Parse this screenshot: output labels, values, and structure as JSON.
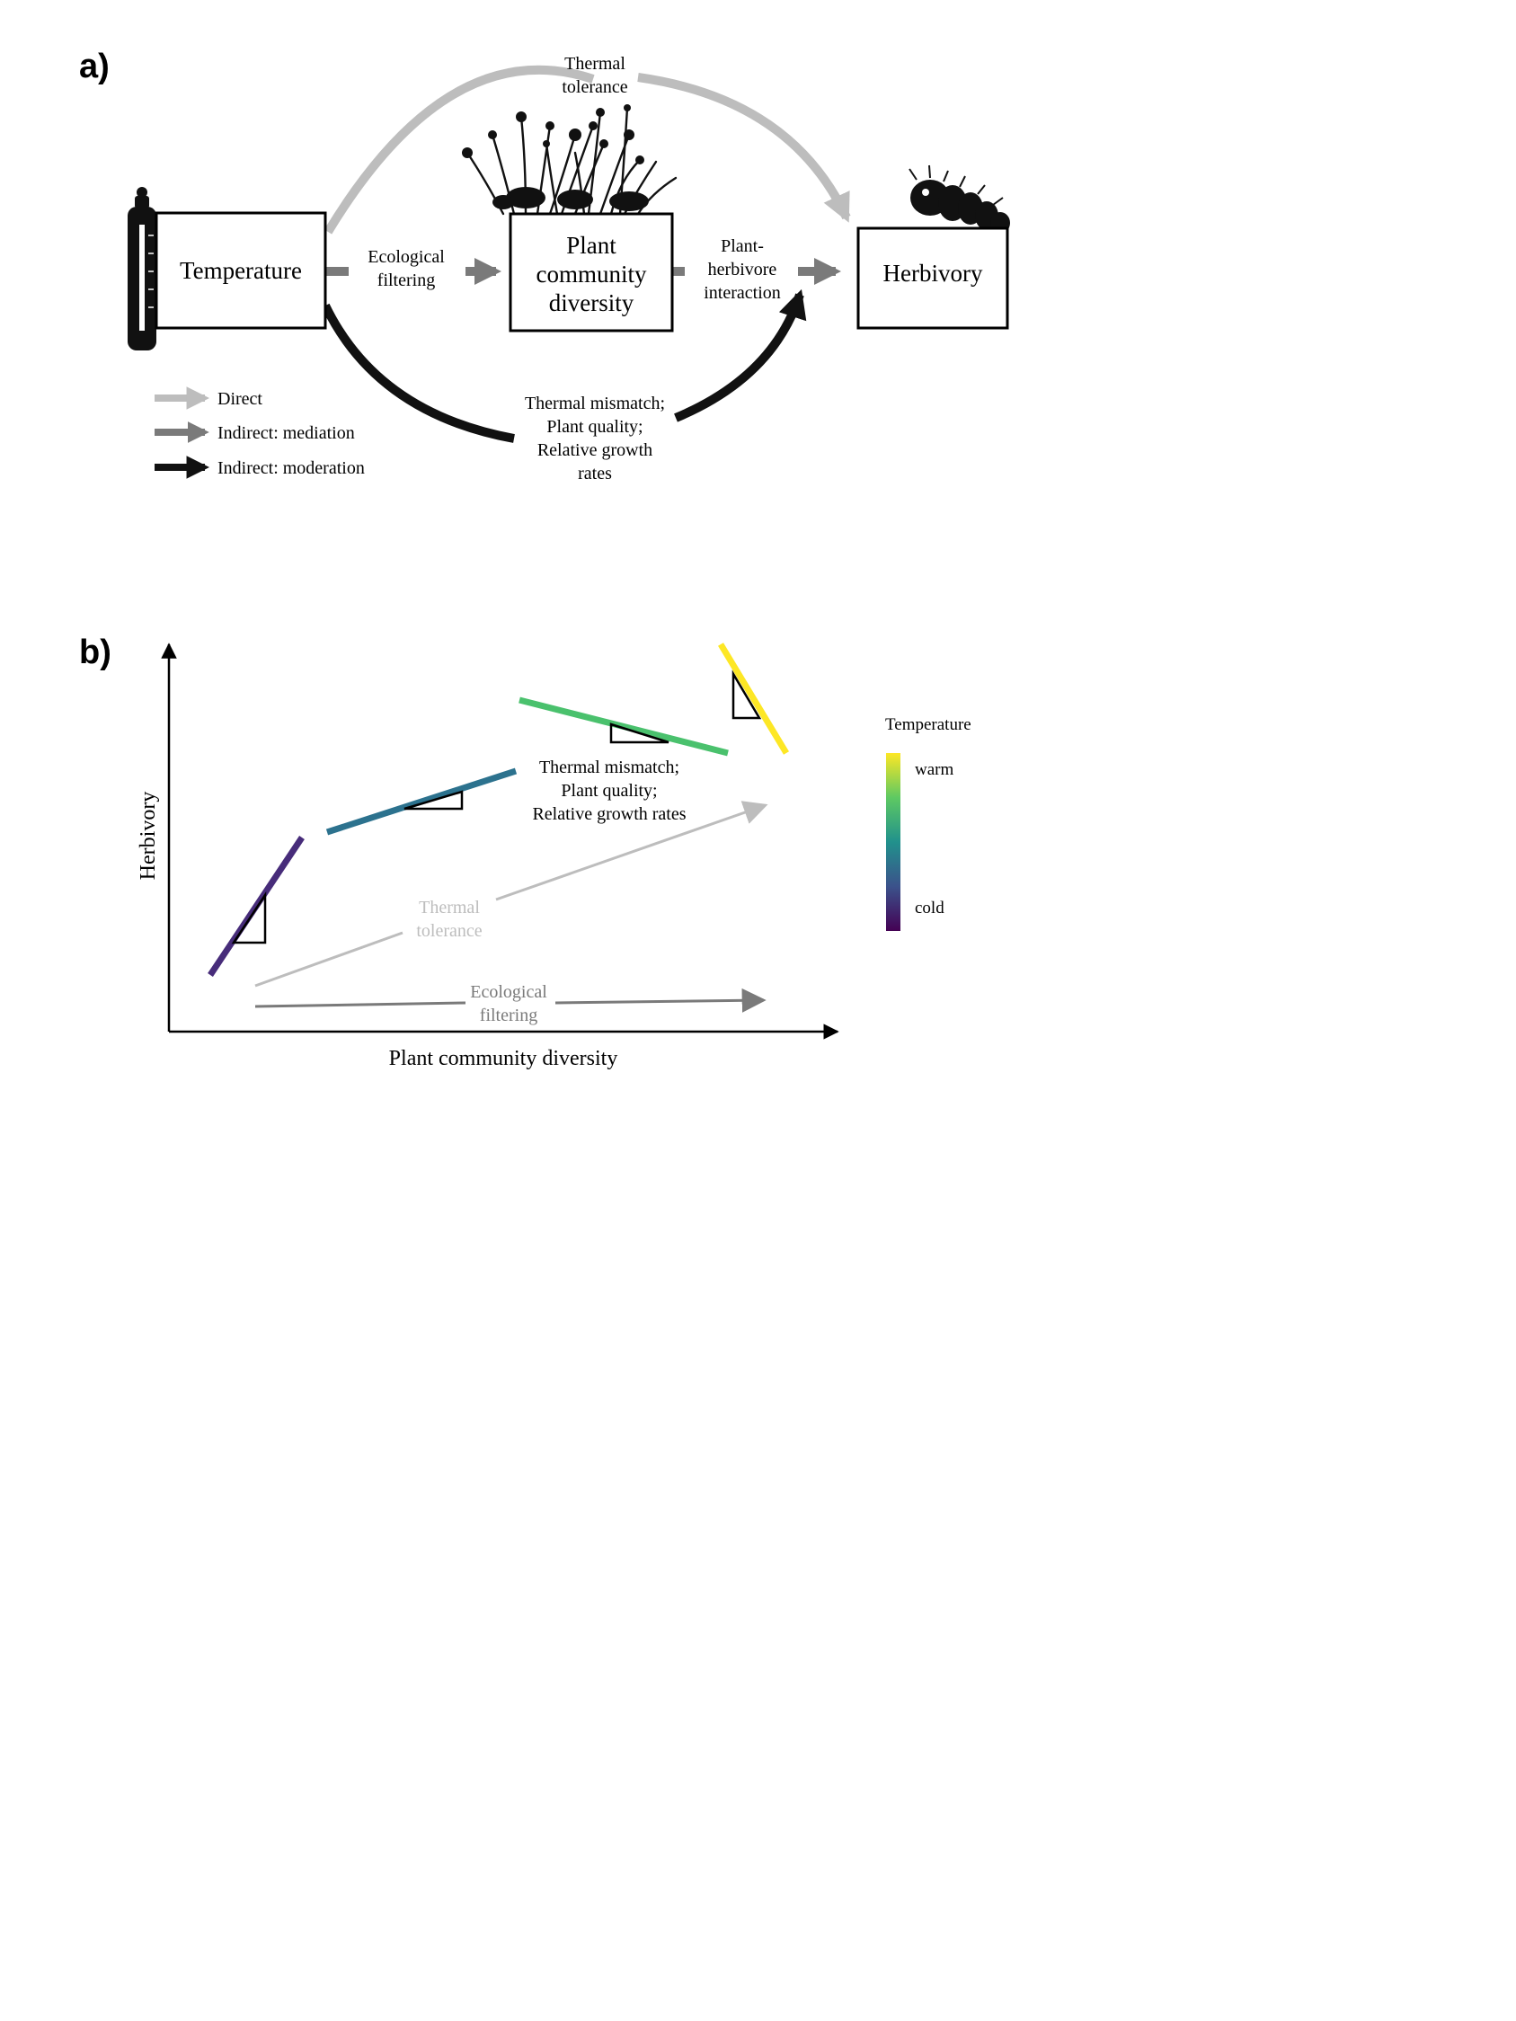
{
  "panel_a": {
    "label": "a)",
    "nodes": {
      "temperature": "Temperature",
      "plant_community_diversity": [
        "Plant",
        "community",
        "diversity"
      ],
      "herbivory": "Herbivory"
    },
    "paths": {
      "thermal_tolerance": [
        "Thermal",
        "tolerance"
      ],
      "ecological_filtering": [
        "Ecological",
        "filtering"
      ],
      "plant_herbivore_interaction": [
        "Plant-",
        "herbivore",
        "interaction"
      ],
      "moderation": [
        "Thermal mismatch;",
        "Plant quality;",
        "Relative growth",
        "rates"
      ]
    },
    "legend": [
      {
        "label": "Direct",
        "color": "#bdbdbd"
      },
      {
        "label": "Indirect: mediation",
        "color": "#7a7a7a"
      },
      {
        "label": "Indirect: moderation",
        "color": "#111111"
      }
    ],
    "icons": [
      "thermometer-icon",
      "plant-community-icon",
      "caterpillar-icon"
    ]
  },
  "panel_b": {
    "label": "b)",
    "x_axis_label": "Plant community diversity",
    "y_axis_label": "Herbivory",
    "annotations": {
      "moderation": [
        "Thermal mismatch;",
        "Plant quality;",
        "Relative growth rates"
      ],
      "thermal_tolerance": [
        "Thermal",
        "tolerance"
      ],
      "ecological_filtering": [
        "Ecological",
        "filtering"
      ]
    },
    "colorbar": {
      "title": "Temperature",
      "high_label": "warm",
      "low_label": "cold",
      "colors": [
        "#fde725",
        "#5ec962",
        "#21918c",
        "#3b528b",
        "#440154"
      ]
    },
    "segments_cold_to_warm": [
      {
        "color": "#472c7a",
        "slope_sign": "positive steep"
      },
      {
        "color": "#2c728e",
        "slope_sign": "positive shallow"
      },
      {
        "color": "#4ac16d",
        "slope_sign": "negative shallow"
      },
      {
        "color": "#fde725",
        "slope_sign": "negative steep"
      }
    ]
  }
}
